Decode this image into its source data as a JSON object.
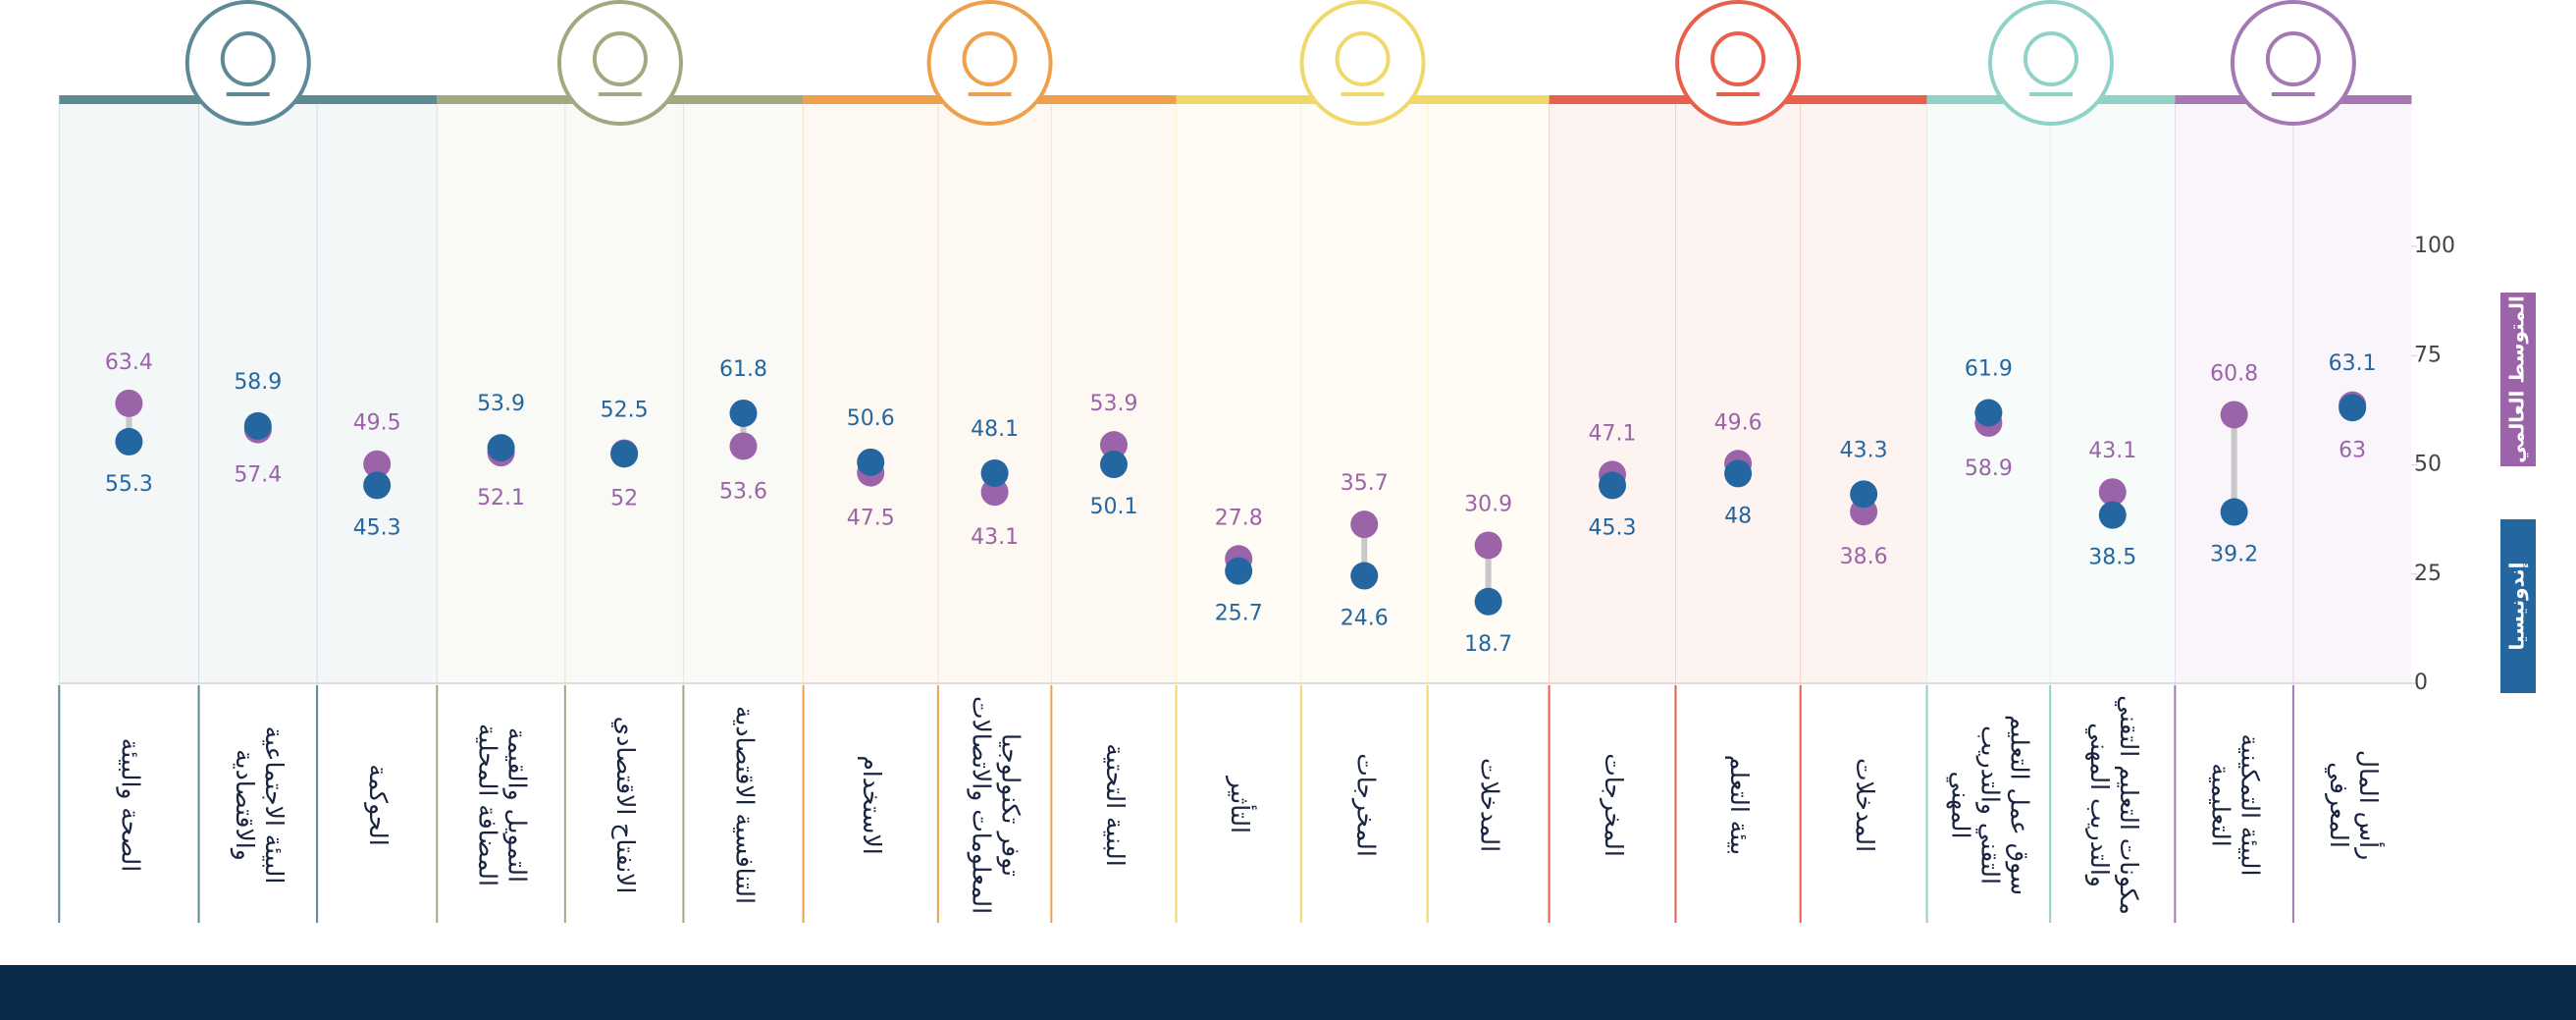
{
  "chart_data": {
    "type": "dumbbell",
    "categories": [
      "الصحة والبيئة",
      "البيئة الاجتماعية\nوالاقتصادية",
      "الحوكمة",
      "التمويل والقيمة\nالمضافة المحلية",
      "الانفتاح الاقتصادي",
      "التنافسية الاقتصادية",
      "الاستخدام",
      "توفر تكنولوجيا\nالمعلومات والاتصالات",
      "البنية التحتية",
      "التأثير",
      "المخرجات",
      "المدخلات",
      "المخرجات",
      "بيئة التعلم",
      "المدخلات",
      "سوق عمل التعليم\nالتقني والتدريب\nالمهني",
      "مكونات التعليم التقني\nوالتدريب المهني",
      "البيئة التمكينية\nالتعليمية",
      "رأس المال\nالمعرفي"
    ],
    "series": [
      {
        "name": "المتوسط العالمي",
        "color": "#9b63a8",
        "values": [
          63.4,
          57.4,
          49.5,
          52.1,
          52,
          53.6,
          47.5,
          43.1,
          53.9,
          27.8,
          35.7,
          30.9,
          47.1,
          49.6,
          38.6,
          58.9,
          43.1,
          60.8,
          63
        ]
      },
      {
        "name": "إندونيسيا",
        "color": "#2467a0",
        "values": [
          55.3,
          58.9,
          45.3,
          53.9,
          52.5,
          61.8,
          50.6,
          48.1,
          50.1,
          25.7,
          24.6,
          18.7,
          45.3,
          48,
          43.3,
          61.9,
          38.5,
          39.2,
          63.1
        ]
      }
    ],
    "ylim": [
      0,
      100
    ],
    "yticks": [
      0,
      25,
      50,
      75,
      100
    ]
  }
}
